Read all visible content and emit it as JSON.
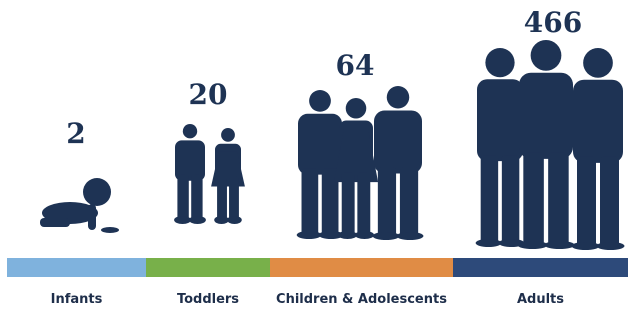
{
  "chart_data": {
    "type": "pictogram",
    "categories": [
      "Infants",
      "Toddlers",
      "Children & Adolescents",
      "Adults"
    ],
    "values": [
      2,
      20,
      64,
      466
    ],
    "colors": [
      "#7fb2dd",
      "#78b04a",
      "#e08c45",
      "#2d4a7a"
    ]
  }
}
